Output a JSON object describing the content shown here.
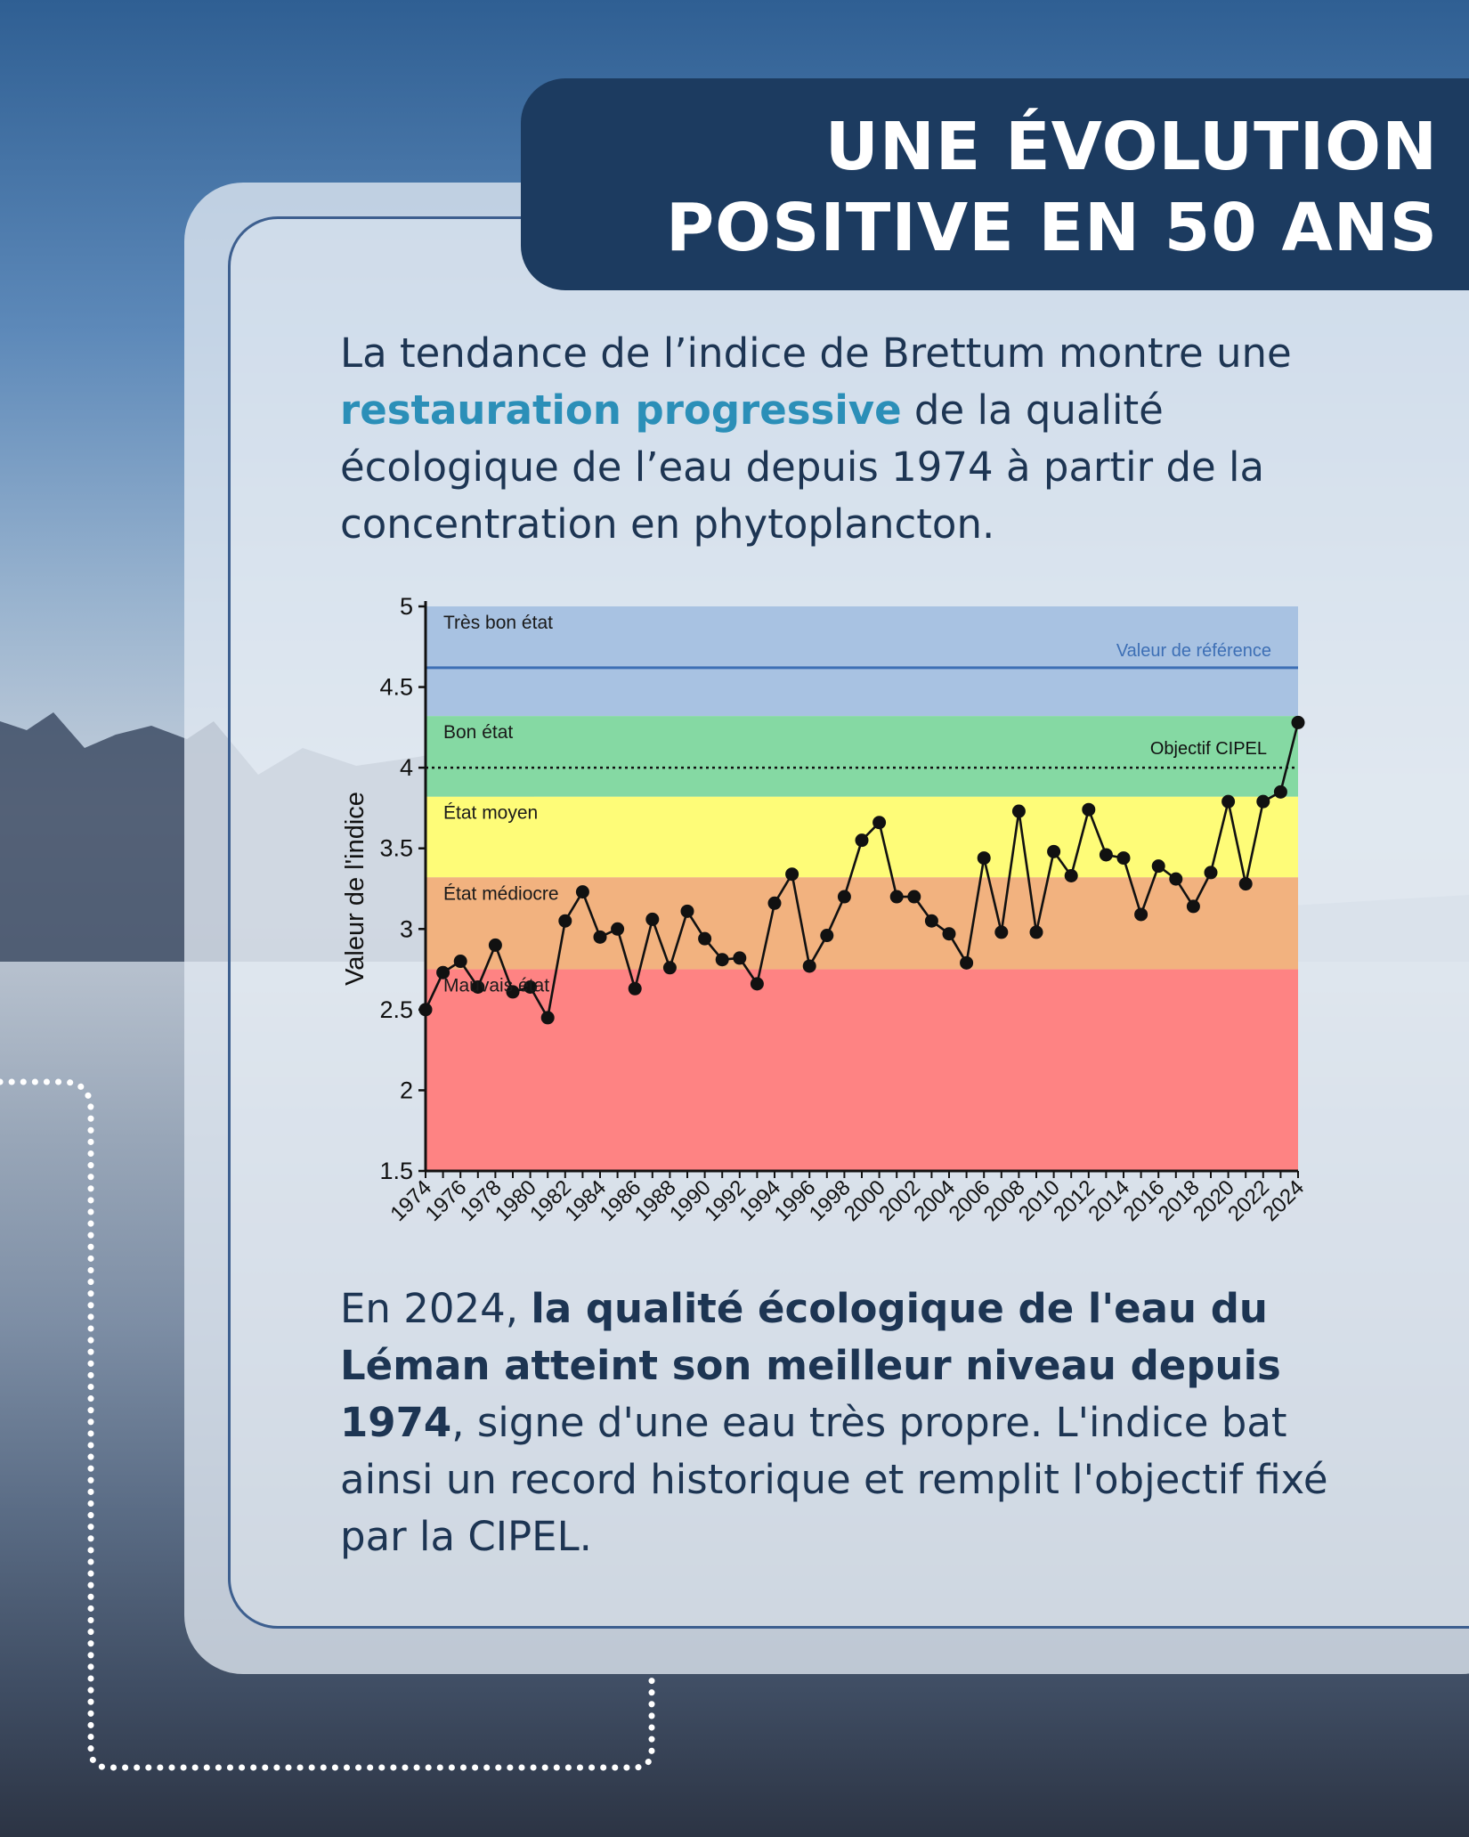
{
  "title": {
    "line1": "UNE ÉVOLUTION",
    "line2": "POSITIVE EN 50 ANS"
  },
  "intro": {
    "before": "La tendance de l’indice de Brettum montre une ",
    "highlight": "restauration progressive",
    "after": " de la qualité écologique de l’eau depuis 1974 à partir de la concentration en phytoplancton."
  },
  "outro": {
    "before": "En 2024, ",
    "bold": "la qualité écologique de l'eau du Léman atteint son meilleur niveau depuis 1974",
    "after": ", signe d'une eau très propre. L'indice bat ainsi un record historique et remplit l'objectif fixé par la CIPEL."
  },
  "colors": {
    "title_bg": "#1c3b60",
    "highlight": "#2b8fb8",
    "band_tres_bon": "#a8c2e2",
    "band_bon": "#85d9a3",
    "band_moyen": "#fefc78",
    "band_mediocre": "#f2b27f",
    "band_mauvais": "#fe8383",
    "reference_line": "#3d6fb5"
  },
  "chart_data": {
    "type": "line",
    "title": "",
    "xlabel": "",
    "ylabel": "Valeur de l'indice",
    "ylim": [
      1.5,
      5
    ],
    "yticks": [
      "5",
      "4.5",
      "4",
      "3.5",
      "3",
      "2.5",
      "2",
      "1.5"
    ],
    "xticks": [
      "1974",
      "1976",
      "1978",
      "1980",
      "1982",
      "1984",
      "1986",
      "1988",
      "1990",
      "1992",
      "1994",
      "1996",
      "1998",
      "2000",
      "2002",
      "2004",
      "2006",
      "2008",
      "2010",
      "2012",
      "2014",
      "2016",
      "2018",
      "2020",
      "2022",
      "2024"
    ],
    "grid": false,
    "bands": [
      {
        "label": "Très bon état",
        "from": 4.32,
        "to": 5.0
      },
      {
        "label": "Bon état",
        "from": 3.82,
        "to": 4.32
      },
      {
        "label": "État moyen",
        "from": 3.32,
        "to": 3.82
      },
      {
        "label": "État médiocre",
        "from": 2.75,
        "to": 3.32
      },
      {
        "label": "Mauvais état",
        "from": 1.5,
        "to": 2.75
      }
    ],
    "reference_lines": [
      {
        "label": "Valeur de référence",
        "value": 4.62,
        "style": "solid"
      },
      {
        "label": "Objectif CIPEL",
        "value": 4.0,
        "style": "dotted"
      }
    ],
    "series": [
      {
        "x": [
          1974,
          1975,
          1976,
          1977,
          1978,
          1979,
          1980,
          1981,
          1982,
          1983,
          1984,
          1985,
          1986,
          1987,
          1988,
          1989,
          1990,
          1991,
          1992,
          1993,
          1994,
          1995,
          1996,
          1997,
          1998,
          1999,
          2000,
          2001,
          2002,
          2003,
          2004,
          2005,
          2006,
          2007,
          2008,
          2009,
          2010,
          2011,
          2012,
          2013,
          2014,
          2015,
          2016,
          2017,
          2018,
          2019,
          2020,
          2021,
          2022,
          2023,
          2024
        ],
        "values": [
          2.5,
          2.73,
          2.8,
          2.64,
          2.9,
          2.61,
          2.64,
          2.45,
          3.05,
          3.23,
          2.95,
          3.0,
          2.63,
          3.06,
          2.76,
          3.11,
          2.94,
          2.81,
          2.82,
          2.66,
          3.16,
          3.34,
          2.77,
          2.96,
          3.2,
          3.55,
          3.66,
          3.2,
          3.2,
          3.05,
          2.97,
          2.79,
          3.44,
          2.98,
          3.73,
          2.98,
          3.48,
          3.33,
          3.74,
          3.46,
          3.44,
          3.09,
          3.39,
          3.31,
          3.14,
          3.35,
          3.79,
          3.28,
          3.79,
          3.85,
          4.28
        ]
      }
    ]
  }
}
